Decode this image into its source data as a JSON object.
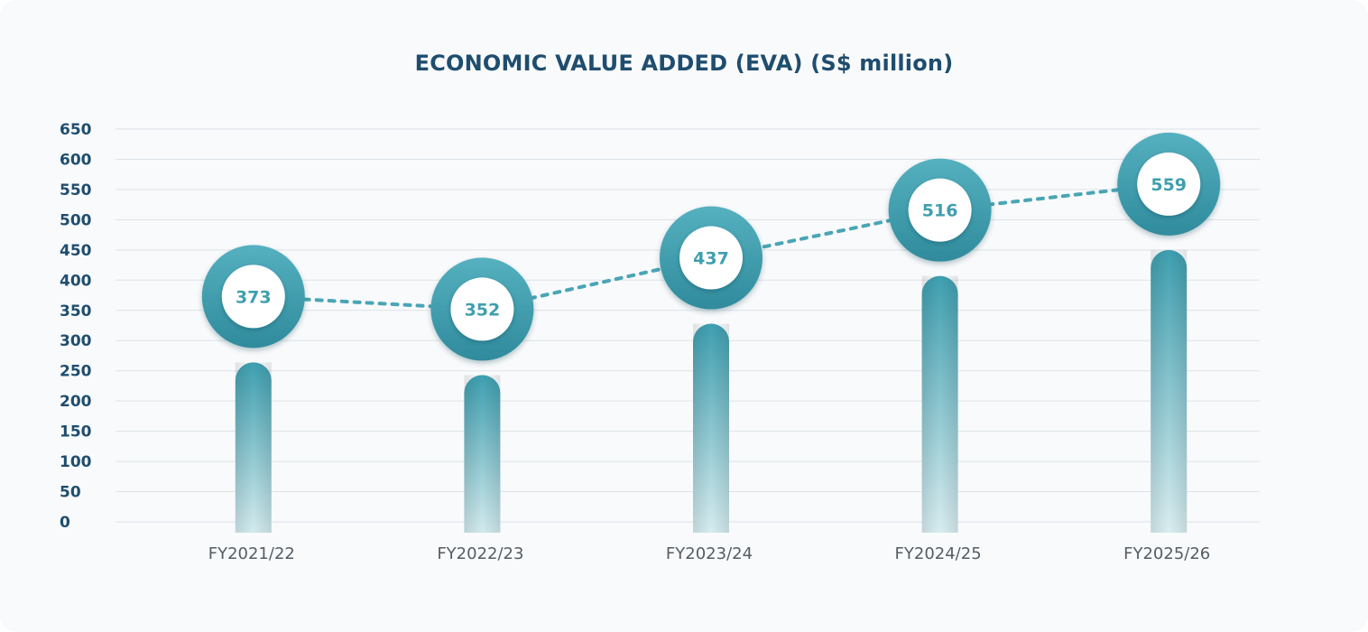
{
  "chart_data": {
    "type": "bar+line",
    "title": "ECONOMIC VALUE ADDED (EVA) (S$ million)",
    "categories": [
      "FY2021/22",
      "FY2022/23",
      "FY2023/24",
      "FY2024/25",
      "FY2025/26"
    ],
    "values": [
      373,
      352,
      437,
      516,
      559
    ],
    "ylim": [
      0,
      650
    ],
    "yticks": [
      0,
      50,
      100,
      150,
      200,
      250,
      300,
      350,
      400,
      450,
      500,
      550,
      600,
      650
    ],
    "grid": true,
    "line_style": "dotted",
    "colors": {
      "accent": "#4aa5b5",
      "accent_dark": "#2f8797",
      "title": "#1f4d6e",
      "grid": "#dde3e7"
    }
  }
}
